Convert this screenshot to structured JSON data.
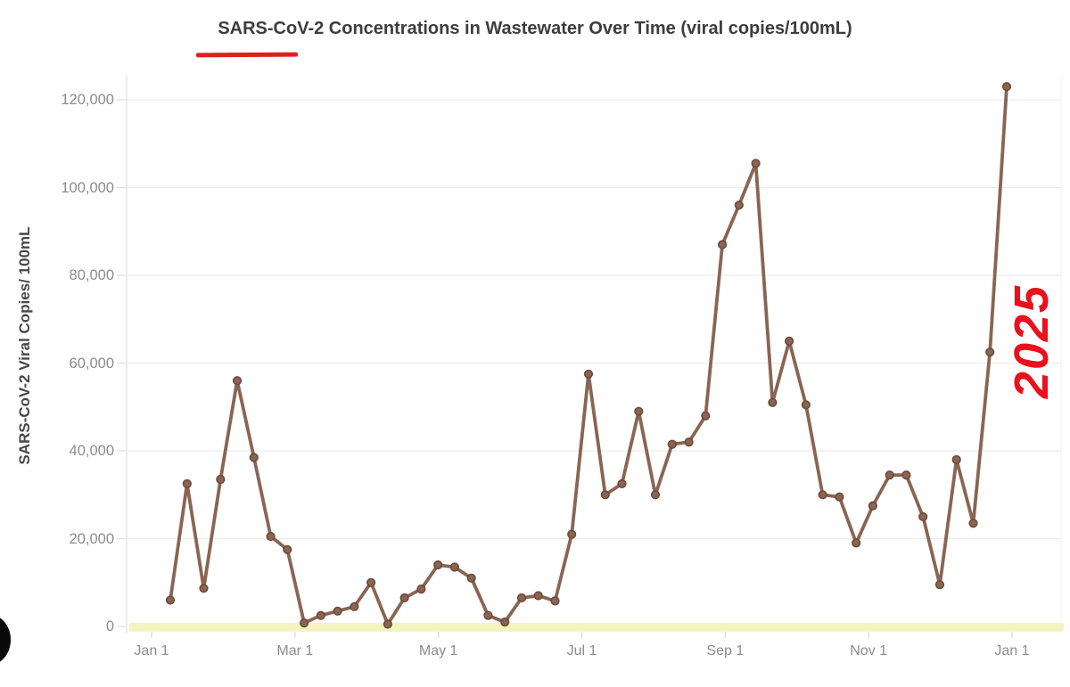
{
  "title": {
    "text": "SARS-CoV-2 Concentrations in Wastewater Over Time (viral copies/100mL)",
    "color": "#3d3d3d",
    "underline_annotation_color": "#e01f1f"
  },
  "y_axis": {
    "label": "SARS-CoV-2 Viral Copies/ 100mL",
    "tick_labels": [
      "120,000",
      "100,000",
      "80,000",
      "60,000",
      "40,000",
      "20,000",
      "0"
    ],
    "tick_values": [
      120000,
      100000,
      80000,
      60000,
      40000,
      20000,
      0
    ],
    "tick_label_color": "#8c8c8c",
    "title_color": "#474747"
  },
  "x_axis": {
    "tick_labels": [
      "Jan 1",
      "Mar 1",
      "May 1",
      "Jul 1",
      "Sep 1",
      "Nov 1",
      "Jan 1"
    ],
    "tick_label_color": "#8c8c8c"
  },
  "annotations": {
    "year_label": "2025",
    "year_label_color": "#e8111c",
    "zero_band_color": "#f4f4c0"
  },
  "chart_data": {
    "type": "line",
    "title": "SARS-CoV-2 Concentrations in Wastewater Over Time (viral copies/100mL)",
    "xlabel": "",
    "ylabel": "SARS-CoV-2 Viral Copies/ 100mL",
    "ylim": [
      0,
      130000
    ],
    "grid": "horizontal-only",
    "legend": "none",
    "x_span": "one year, Jan 1 to Jan 1, ~weekly samples (51 points)",
    "x_tick_labels": [
      "Jan 1",
      "Mar 1",
      "May 1",
      "Jul 1",
      "Sep 1",
      "Nov 1",
      "Jan 1"
    ],
    "y_tick_values": [
      120000,
      100000,
      80000,
      60000,
      40000,
      20000,
      0
    ],
    "series": [
      {
        "name": "SARS-CoV-2 viral copies per 100mL",
        "values": [
          6000,
          32500,
          8700,
          33500,
          56000,
          38500,
          20500,
          17500,
          800,
          2500,
          3500,
          4500,
          10000,
          500,
          6500,
          8500,
          14000,
          13500,
          11000,
          2500,
          1000,
          6500,
          7000,
          5800,
          21000,
          57500,
          30000,
          32500,
          49000,
          30000,
          41500,
          42000,
          48000,
          87000,
          96000,
          105500,
          51000,
          65000,
          50500,
          30000,
          29500,
          19000,
          27500,
          34500,
          34500,
          25000,
          9500,
          38000,
          23500,
          62500,
          123000
        ]
      }
    ],
    "line_color": "#8a6553",
    "marker": "circle",
    "marker_fill": "#8a6553",
    "marker_stroke": "#6d4a39",
    "gridline_color": "#ececec",
    "axis_line_color": "#e2e2e2"
  }
}
